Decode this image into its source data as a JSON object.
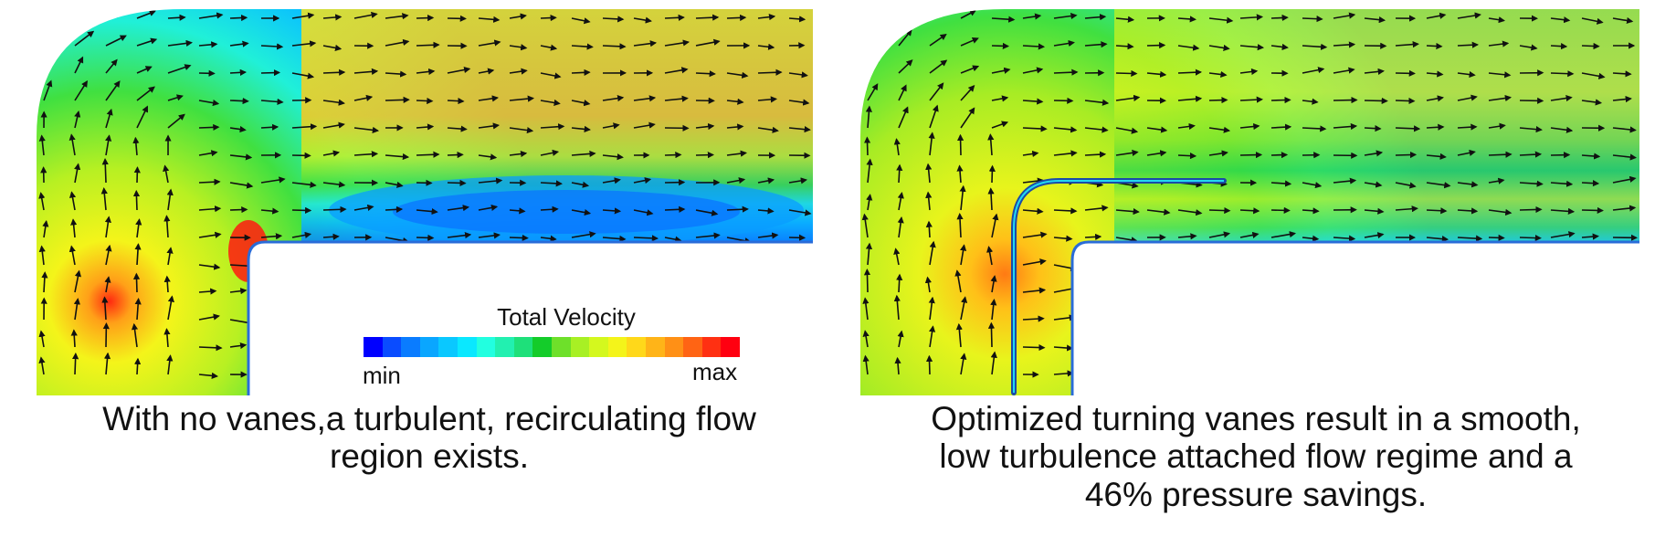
{
  "legend": {
    "title": "Total Velocity",
    "min_label": "min",
    "max_label": "max",
    "colors": [
      "#0000ff",
      "#0a4cff",
      "#0a7cff",
      "#0aa6ff",
      "#0ac8ff",
      "#0ae8ff",
      "#22ffe0",
      "#22f0b0",
      "#1ee07a",
      "#14cc2a",
      "#6ee02a",
      "#a8f024",
      "#d4f81e",
      "#f4f41a",
      "#ffd81a",
      "#ffb418",
      "#ff9016",
      "#ff6414",
      "#ff3012",
      "#ff0010"
    ]
  },
  "panels": [
    {
      "name": "no-vanes",
      "caption_lines": [
        "With  no vanes,a turbulent, recirculating flow",
        "region exists."
      ]
    },
    {
      "name": "optimized-vanes",
      "caption_lines": [
        "Optimized turning vanes result in a smooth,",
        "low turbulence attached flow regime and a",
        "46% pressure savings."
      ]
    }
  ]
}
